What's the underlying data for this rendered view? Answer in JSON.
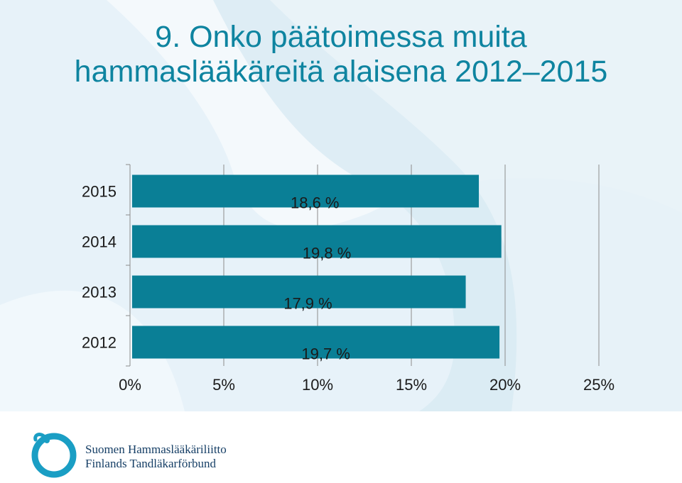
{
  "title": {
    "line1": "9. Onko päätoimessa muita",
    "line2": "hammaslääkäreitä alaisena 2012–2015"
  },
  "colors": {
    "bar": "#0a7f96",
    "title": "#0e84a0",
    "background_light": "#e7f2f9",
    "background_swoosh": "#cfe4ef",
    "logo": "#1a9ec4",
    "org_text": "#163f66"
  },
  "chart_data": {
    "type": "bar",
    "orientation": "horizontal",
    "categories": [
      "2015",
      "2014",
      "2013",
      "2012"
    ],
    "values": [
      18.6,
      19.8,
      17.9,
      19.7
    ],
    "data_labels": [
      "18,6 %",
      "19,8 %",
      "17,9 %",
      "19,7 %"
    ],
    "x_ticks": [
      0,
      5,
      10,
      15,
      20,
      25
    ],
    "x_tick_labels": [
      "0%",
      "5%",
      "10%",
      "15%",
      "20%",
      "25%"
    ],
    "xlim": [
      0,
      25
    ],
    "grid": "vertical",
    "legend": "none",
    "title": "",
    "xlabel": "",
    "ylabel": ""
  },
  "footer": {
    "logo_icon": "swan-circle-logo-icon",
    "org_name_fi": "Suomen Hammaslääkäriliitto",
    "org_name_sv": "Finlands Tandläkarförbund"
  }
}
